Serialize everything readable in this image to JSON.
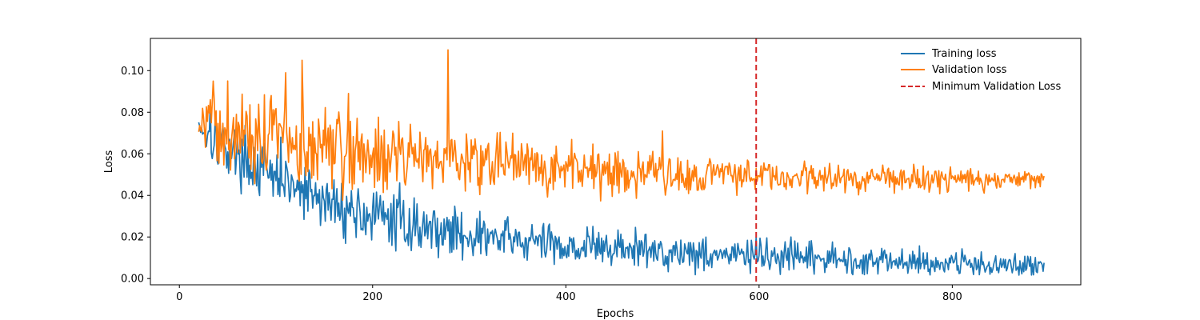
{
  "chart_data": {
    "type": "line",
    "title": "",
    "xlabel": "Epochs",
    "ylabel": "Loss",
    "xlim": [
      -30,
      933
    ],
    "ylim": [
      -0.003,
      0.1155
    ],
    "xticks": [
      0,
      200,
      400,
      600,
      800
    ],
    "yticks": [
      0.0,
      0.02,
      0.04,
      0.06,
      0.08,
      0.1
    ],
    "xtick_labels": [
      "0",
      "200",
      "400",
      "600",
      "800"
    ],
    "ytick_labels": [
      "0.00",
      "0.02",
      "0.04",
      "0.06",
      "0.08",
      "0.10"
    ],
    "grid": false,
    "legend_position": "top-right",
    "vline": {
      "name": "Minimum Validation Loss",
      "x": 597,
      "color": "#d62728",
      "style": "dashed"
    },
    "series": [
      {
        "name": "Training loss",
        "color": "#1f77b4",
        "noisy": true,
        "x_range": [
          20,
          895
        ],
        "trend": [
          [
            20,
            0.075
          ],
          [
            30,
            0.068
          ],
          [
            50,
            0.063
          ],
          [
            75,
            0.055
          ],
          [
            100,
            0.047
          ],
          [
            125,
            0.042
          ],
          [
            150,
            0.037
          ],
          [
            175,
            0.033
          ],
          [
            200,
            0.03
          ],
          [
            250,
            0.025
          ],
          [
            300,
            0.021
          ],
          [
            350,
            0.018
          ],
          [
            400,
            0.016
          ],
          [
            450,
            0.0145
          ],
          [
            500,
            0.013
          ],
          [
            550,
            0.012
          ],
          [
            600,
            0.0105
          ],
          [
            650,
            0.0095
          ],
          [
            700,
            0.0088
          ],
          [
            750,
            0.0082
          ],
          [
            800,
            0.0075
          ],
          [
            850,
            0.0068
          ],
          [
            895,
            0.0062
          ]
        ],
        "amplitude": [
          [
            20,
            0.003
          ],
          [
            30,
            0.006
          ],
          [
            100,
            0.007
          ],
          [
            200,
            0.0065
          ],
          [
            300,
            0.0055
          ],
          [
            400,
            0.005
          ],
          [
            500,
            0.0045
          ],
          [
            600,
            0.004
          ],
          [
            700,
            0.0035
          ],
          [
            800,
            0.003
          ],
          [
            895,
            0.003
          ]
        ],
        "peaks": [
          [
            32,
            0.085
          ],
          [
            105,
            0.068
          ],
          [
            228,
            0.046
          ],
          [
            597,
            0.02
          ],
          [
            865,
            0.012
          ]
        ]
      },
      {
        "name": "Validation loss",
        "color": "#ff7f0e",
        "noisy": true,
        "x_range": [
          20,
          895
        ],
        "trend": [
          [
            20,
            0.078
          ],
          [
            30,
            0.072
          ],
          [
            50,
            0.07
          ],
          [
            100,
            0.068
          ],
          [
            150,
            0.064
          ],
          [
            200,
            0.06
          ],
          [
            250,
            0.058
          ],
          [
            300,
            0.056
          ],
          [
            350,
            0.054
          ],
          [
            400,
            0.0525
          ],
          [
            450,
            0.051
          ],
          [
            500,
            0.0505
          ],
          [
            550,
            0.05
          ],
          [
            600,
            0.0495
          ],
          [
            650,
            0.049
          ],
          [
            700,
            0.0485
          ],
          [
            750,
            0.048
          ],
          [
            800,
            0.048
          ],
          [
            850,
            0.0475
          ],
          [
            895,
            0.0475
          ]
        ],
        "amplitude": [
          [
            20,
            0.004
          ],
          [
            30,
            0.01
          ],
          [
            150,
            0.011
          ],
          [
            250,
            0.008
          ],
          [
            350,
            0.0065
          ],
          [
            450,
            0.0055
          ],
          [
            550,
            0.0045
          ],
          [
            650,
            0.0035
          ],
          [
            750,
            0.003
          ],
          [
            895,
            0.003
          ]
        ],
        "peaks": [
          [
            35,
            0.095
          ],
          [
            95,
            0.088
          ],
          [
            110,
            0.099
          ],
          [
            127,
            0.105
          ],
          [
            175,
            0.089
          ],
          [
            228,
            0.063
          ],
          [
            278,
            0.11
          ],
          [
            320,
            0.065
          ],
          [
            500,
            0.071
          ],
          [
            597,
            0.053
          ]
        ]
      }
    ]
  }
}
